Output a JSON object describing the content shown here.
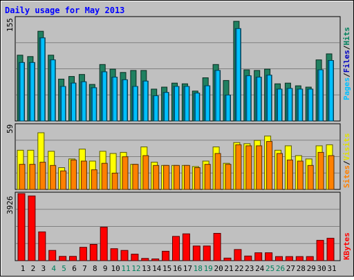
{
  "chart_data": {
    "type": "bar",
    "title": "Daily usage for May 2013",
    "categories": [
      "1",
      "2",
      "3",
      "4",
      "5",
      "6",
      "7",
      "8",
      "9",
      "10",
      "11",
      "12",
      "13",
      "14",
      "15",
      "16",
      "17",
      "18",
      "19",
      "20",
      "21",
      "22",
      "23",
      "24",
      "25",
      "26",
      "27",
      "28",
      "29",
      "30",
      "31"
    ],
    "weekend_days": [
      "4",
      "5",
      "11",
      "12",
      "18",
      "19",
      "25",
      "26"
    ],
    "panels": [
      {
        "id": "hits",
        "ymax_label": "155",
        "ylim": [
          0,
          155
        ],
        "legend": [
          "Pages",
          "/",
          "Files",
          "/",
          "Hits"
        ],
        "legend_colors": [
          "#00c0ff",
          "#000000",
          "#0000c0",
          "#000000",
          "#00805c"
        ],
        "series": [
          {
            "key": "hits",
            "color": "#208060",
            "values": [
              99,
              97,
              135,
              99,
              63,
              67,
              70,
              55,
              85,
              78,
              73,
              76,
              76,
              48,
              51,
              57,
              56,
              45,
              65,
              85,
              61,
              150,
              77,
              76,
              78,
              56,
              57,
              53,
              51,
              92,
              101
            ]
          },
          {
            "key": "files",
            "color": "#10a0d8",
            "values": [
              88,
              88,
              125,
              92,
              52,
              57,
              59,
              50,
              74,
              66,
              62,
              52,
              60,
              38,
              43,
              52,
              52,
              42,
              53,
              76,
              39,
              139,
              68,
              66,
              69,
              48,
              49,
              48,
              48,
              77,
              91
            ]
          },
          {
            "key": "pages",
            "color": "#00c0ff",
            "values": [
              88,
              88,
              125,
              92,
              52,
              57,
              59,
              50,
              74,
              66,
              62,
              52,
              60,
              38,
              43,
              52,
              52,
              42,
              53,
              76,
              39,
              139,
              68,
              66,
              69,
              48,
              49,
              48,
              48,
              77,
              91
            ]
          }
        ]
      },
      {
        "id": "visits",
        "ymax_label": "59",
        "ylim": [
          0,
          59
        ],
        "legend": [
          "Sites",
          "/",
          "Visits"
        ],
        "legend_colors": [
          "#ff8000",
          "#000000",
          "#e0e000"
        ],
        "series": [
          {
            "key": "visits",
            "color": "#ffff00",
            "values": [
              36,
              36,
              52,
              35,
              20,
              28,
              37,
              26,
              35,
              33,
              34,
              23,
              39,
              25,
              22,
              22,
              22,
              21,
              26,
              39,
              24,
              43,
              42,
              45,
              49,
              36,
              40,
              31,
              28,
              40,
              41
            ]
          },
          {
            "key": "sites",
            "color": "#ff8000",
            "values": [
              23,
              23,
              25,
              22,
              17,
              27,
              26,
              18,
              24,
              15,
              30,
              23,
              31,
              22,
              22,
              22,
              22,
              20,
              23,
              33,
              23,
              41,
              40,
              40,
              44,
              33,
              27,
              26,
              22,
              34,
              31
            ]
          }
        ]
      },
      {
        "id": "kbytes",
        "ymax_label": "3926",
        "ylim": [
          0,
          3926
        ],
        "legend": [
          "KBytes"
        ],
        "legend_colors": [
          "#ff0000"
        ],
        "series": [
          {
            "key": "kbytes",
            "color": "#ff0000",
            "values": [
              3926,
              3790,
              1685,
              600,
              250,
              250,
              780,
              950,
              1960,
              700,
              600,
              380,
              130,
              100,
              550,
              1420,
              1570,
              860,
              860,
              1600,
              150,
              650,
              270,
              460,
              460,
              240,
              240,
              240,
              240,
              1190,
              1310
            ]
          }
        ]
      }
    ]
  }
}
